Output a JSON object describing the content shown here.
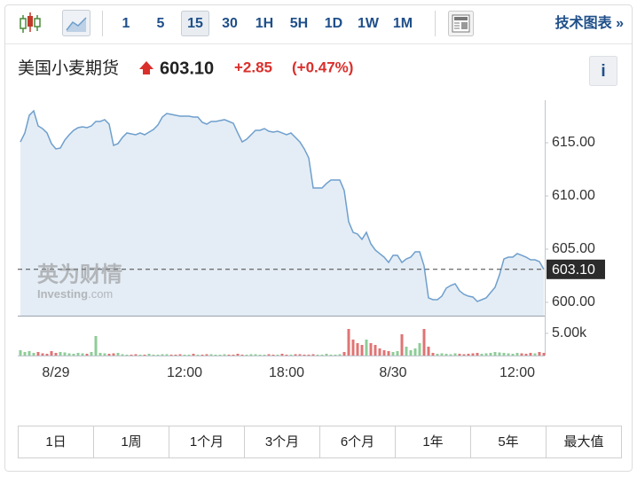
{
  "toolbar": {
    "intervals": [
      "1",
      "5",
      "15",
      "30",
      "1H",
      "5H",
      "1D",
      "1W",
      "1M"
    ],
    "active_interval": 2,
    "link": "技术图表 »"
  },
  "quote": {
    "name": "美国小麦期货",
    "price": "603.10",
    "change": "+2.85",
    "change_pct": "(+0.47%)",
    "info": "i"
  },
  "watermark": {
    "cn": "英为财情",
    "en": "Investing",
    "suffix": ".com"
  },
  "chart_data": {
    "type": "line",
    "color": "#6f9fcd",
    "fill": "#e4edf5",
    "categories": [
      null,
      null,
      null,
      null,
      null,
      null,
      null,
      null,
      "8/29",
      null,
      null,
      null,
      null,
      null,
      null,
      null,
      null,
      null,
      null,
      null,
      null,
      null,
      null,
      null,
      null,
      null,
      null,
      null,
      null,
      null,
      null,
      null,
      null,
      null,
      null,
      null,
      null,
      "12:00",
      null,
      null,
      null,
      null,
      null,
      null,
      null,
      null,
      null,
      null,
      null,
      null,
      null,
      null,
      null,
      null,
      null,
      null,
      null,
      null,
      null,
      null,
      "18:00",
      null,
      null,
      null,
      null,
      null,
      null,
      null,
      null,
      null,
      null,
      null,
      null,
      null,
      null,
      null,
      null,
      null,
      null,
      null,
      null,
      null,
      null,
      null,
      "8/30",
      null,
      null,
      null,
      null,
      null,
      null,
      null,
      null,
      null,
      null,
      null,
      null,
      null,
      null,
      null,
      null,
      null,
      null,
      null,
      null,
      null,
      null,
      null,
      null,
      null,
      null,
      null,
      "12:00",
      null,
      null,
      null,
      null,
      null,
      null
    ],
    "values": [
      615.08,
      615.92,
      617.58,
      618.0,
      616.58,
      616.33,
      615.92,
      614.92,
      614.42,
      614.5,
      615.25,
      615.75,
      616.17,
      616.42,
      616.5,
      616.42,
      616.58,
      617.0,
      617.0,
      617.17,
      616.75,
      614.75,
      614.92,
      615.5,
      615.92,
      615.83,
      615.75,
      615.92,
      615.75,
      616.0,
      616.25,
      616.67,
      617.42,
      617.75,
      617.67,
      617.58,
      617.5,
      617.5,
      617.5,
      617.42,
      617.42,
      616.92,
      616.75,
      617.0,
      617.0,
      617.08,
      617.17,
      617.0,
      616.83,
      615.92,
      615.08,
      615.33,
      615.75,
      616.17,
      616.17,
      616.33,
      616.08,
      616.0,
      616.08,
      615.92,
      615.75,
      615.92,
      615.5,
      615.08,
      614.42,
      613.58,
      610.75,
      610.75,
      610.75,
      611.17,
      611.5,
      611.5,
      611.5,
      610.5,
      607.58,
      606.58,
      606.42,
      605.92,
      606.58,
      605.5,
      604.92,
      604.58,
      604.25,
      603.75,
      604.42,
      604.42,
      603.75,
      604.08,
      604.25,
      604.75,
      604.75,
      603.42,
      600.42,
      600.25,
      600.25,
      600.58,
      601.33,
      601.58,
      601.75,
      601.08,
      600.75,
      600.58,
      600.5,
      600.08,
      600.25,
      600.42,
      600.92,
      601.42,
      602.58,
      604.08,
      604.25,
      604.25,
      604.58,
      604.42,
      604.25,
      604.0,
      604.0,
      603.83,
      603.1
    ],
    "ylim": [
      598.75,
      619
    ],
    "yticks": [
      {
        "value": 600,
        "label": "600.00"
      },
      {
        "value": 605,
        "label": "605.00"
      },
      {
        "value": 610,
        "label": "610.00"
      },
      {
        "value": 615,
        "label": "615.00"
      }
    ],
    "current_price": {
      "value": 603.1,
      "label": "603.10"
    },
    "volume": {
      "up_color": "#8fcc98",
      "down_color": "#e07474",
      "ylim": [
        0,
        8.6
      ],
      "yticks": [
        {
          "value": 5,
          "label": "5.00k"
        }
      ],
      "values": [
        1.2,
        0.8,
        1.0,
        0.6,
        0.8,
        0.5,
        0.4,
        1.0,
        0.6,
        0.8,
        0.7,
        0.5,
        0.4,
        0.6,
        0.5,
        0.4,
        0.8,
        4.4,
        0.6,
        0.5,
        0.4,
        0.5,
        0.6,
        0.3,
        0.2,
        0.2,
        0.3,
        0.2,
        0.2,
        0.4,
        0.2,
        0.2,
        0.3,
        0.3,
        0.2,
        0.2,
        0.3,
        0.2,
        0.2,
        0.4,
        0.2,
        0.2,
        0.3,
        0.3,
        0.2,
        0.2,
        0.3,
        0.2,
        0.2,
        0.4,
        0.2,
        0.2,
        0.3,
        0.3,
        0.2,
        0.2,
        0.3,
        0.2,
        0.2,
        0.4,
        0.2,
        0.2,
        0.3,
        0.3,
        0.2,
        0.2,
        0.3,
        0.2,
        0.2,
        0.4,
        0.2,
        0.2,
        0.3,
        0.8,
        6.0,
        3.6,
        2.8,
        2.4,
        3.6,
        2.8,
        2.4,
        1.6,
        1.2,
        1.0,
        0.8,
        1.0,
        4.8,
        2.0,
        1.2,
        1.6,
        2.8,
        6.0,
        2.0,
        0.6,
        0.4,
        0.5,
        0.4,
        0.3,
        0.5,
        0.4,
        0.3,
        0.4,
        0.5,
        0.6,
        0.4,
        0.5,
        0.6,
        0.8,
        0.7,
        0.6,
        0.5,
        0.4,
        0.6,
        0.5,
        0.4,
        0.6,
        0.5,
        0.8,
        0.6
      ]
    }
  },
  "ranges": [
    "1日",
    "1周",
    "1个月",
    "3个月",
    "6个月",
    "1年",
    "5年",
    "最大值"
  ]
}
